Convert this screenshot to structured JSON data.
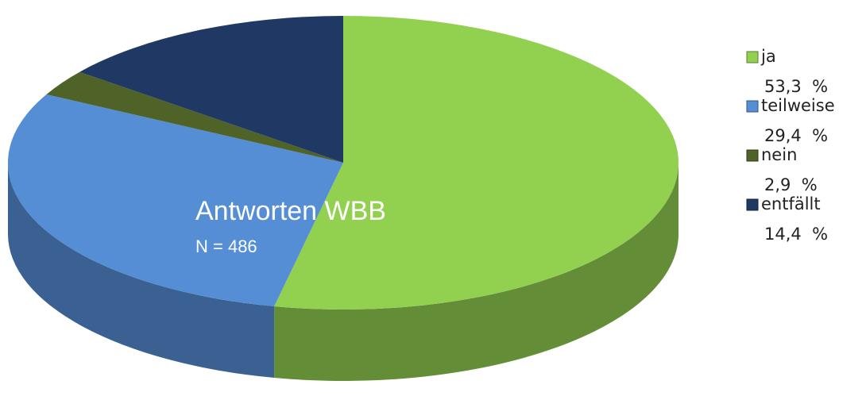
{
  "chart_data": {
    "type": "pie",
    "title": "Antworten WBB",
    "subtitle": "N = 486",
    "categories": [
      "ja",
      "teilweise",
      "nein",
      "entfällt"
    ],
    "values": [
      53.3,
      29.4,
      2.9,
      14.4
    ],
    "value_labels": [
      "53,3  %",
      "29,4  %",
      "2,9  %",
      "14,4  %"
    ],
    "colors": [
      "#92d050",
      "#558ed5",
      "#4f6228",
      "#1f3864"
    ],
    "legend": "right"
  }
}
